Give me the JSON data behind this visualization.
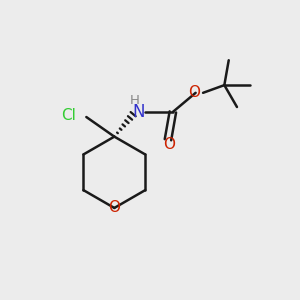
{
  "background_color": "#ececec",
  "bond_color": "#1a1a1a",
  "bond_width": 1.8,
  "figsize": [
    3.0,
    3.0
  ],
  "dpi": 100,
  "xlim": [
    0,
    10
  ],
  "ylim": [
    0,
    10
  ],
  "cl_color": "#33cc33",
  "n_color": "#3333cc",
  "o_color": "#cc2200",
  "h_color": "#888888"
}
